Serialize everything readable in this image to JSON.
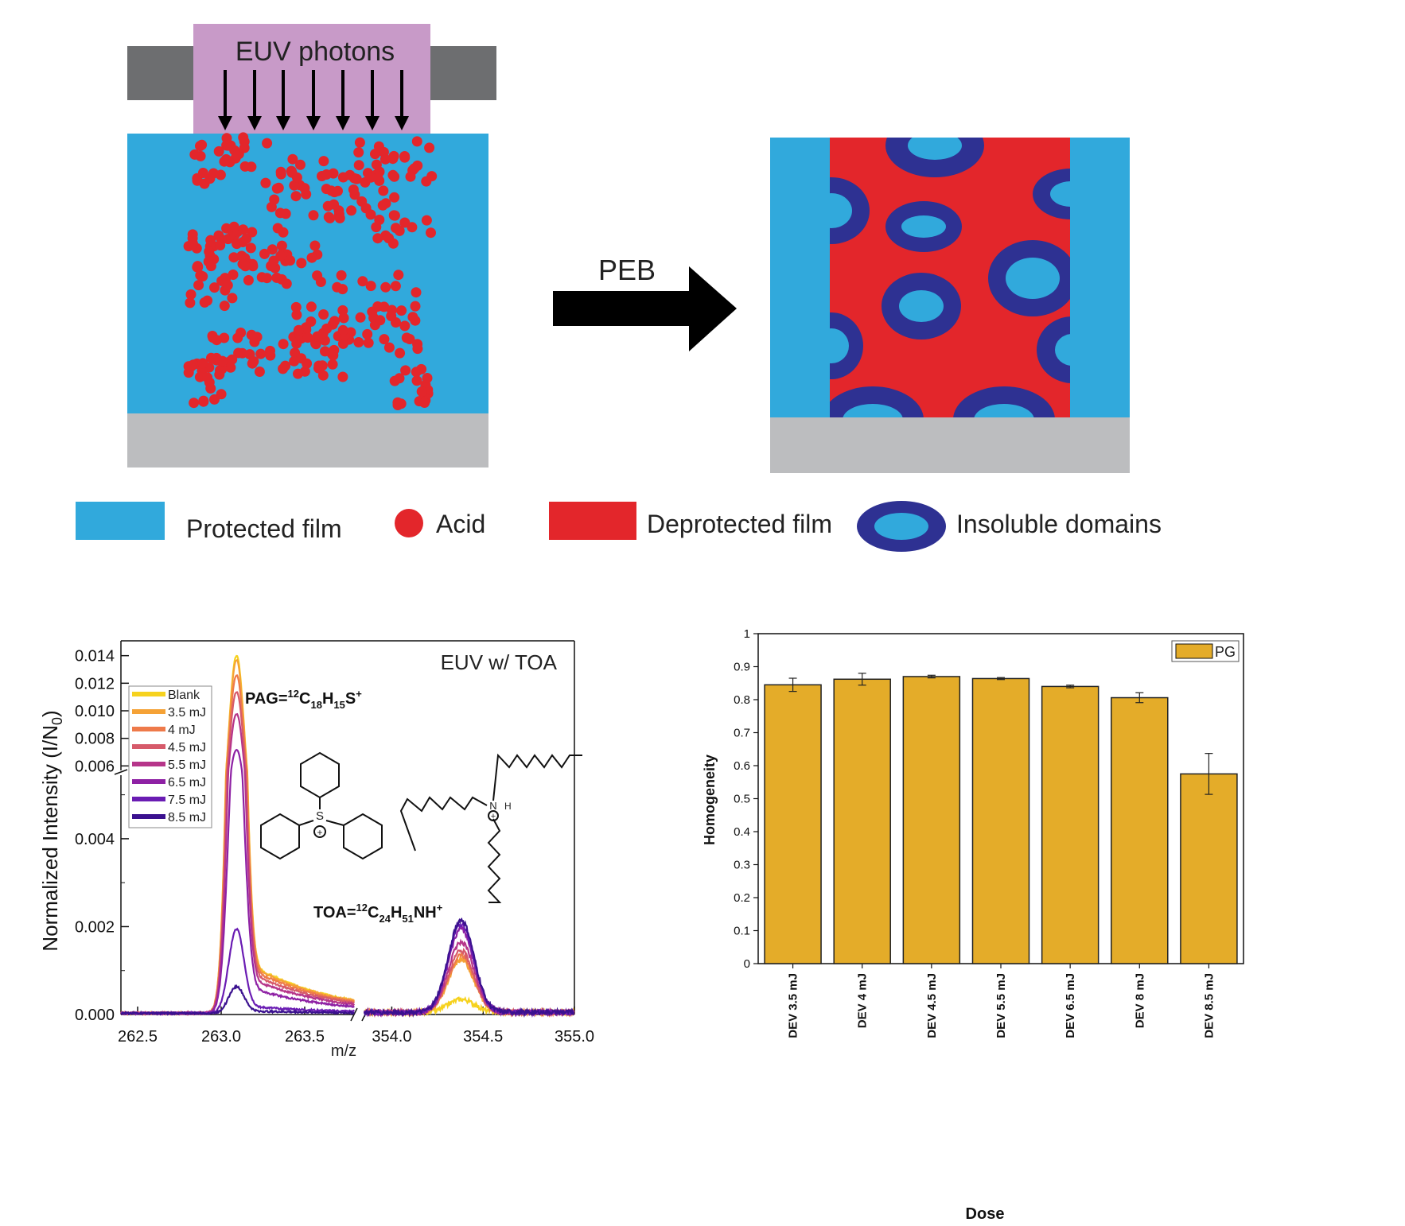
{
  "schematic": {
    "euv_label": "EUV photons",
    "arrow_label": "PEB",
    "legend": {
      "protected": "Protected film",
      "acid": "Acid",
      "deprotected": "Deprotected film",
      "insoluble": "Insoluble domains"
    },
    "colors": {
      "protected": "#31a9dc",
      "acid": "#e3262b",
      "deprotected": "#e3262b",
      "domain_ring": "#2e3192",
      "mask": "#c89ac8",
      "absorber": "#6d6e70",
      "substrate": "#bcbdbf"
    }
  },
  "chart_data": [
    {
      "type": "line",
      "annotation": "EUV w/ TOA",
      "xlabel": "m/z",
      "ylabel": "Normalized Intensity (I/N0)",
      "x_ticks_left": [
        "262.5",
        "263.0",
        "263.5"
      ],
      "x_ticks_right": [
        "354.0",
        "354.5",
        "355.0"
      ],
      "x_range_left": [
        262.4,
        263.8
      ],
      "x_range_right": [
        353.85,
        355.0
      ],
      "y_ticks_lower": [
        "0.000",
        "0.002",
        "0.004"
      ],
      "y_ticks_upper": [
        "0.006",
        "0.008",
        "0.010",
        "0.012",
        "0.014"
      ],
      "y_range_lower": [
        0,
        0.0055
      ],
      "y_range_upper": [
        0.0055,
        0.0145
      ],
      "peak_labels": {
        "pag": "PAG=12C18H15S+",
        "toa": "TOA=12C24H51NH+"
      },
      "molecule_labels": {
        "s": "S",
        "n": "N",
        "h": "H",
        "plus": "+"
      },
      "series": [
        {
          "name": "Blank",
          "color": "#f6d21e",
          "pag_peak": 0.0139,
          "toa_peak": 0.0003
        },
        {
          "name": "3.5 mJ",
          "color": "#f5a236",
          "pag_peak": 0.0136,
          "toa_peak": 0.0012
        },
        {
          "name": "4 mJ",
          "color": "#ee7a4a",
          "pag_peak": 0.0125,
          "toa_peak": 0.0013
        },
        {
          "name": "4.5 mJ",
          "color": "#d65a6a",
          "pag_peak": 0.0113,
          "toa_peak": 0.0014
        },
        {
          "name": "5.5 mJ",
          "color": "#b6358a",
          "pag_peak": 0.0097,
          "toa_peak": 0.0016
        },
        {
          "name": "6.5 mJ",
          "color": "#8e21a4",
          "pag_peak": 0.0071,
          "toa_peak": 0.0019
        },
        {
          "name": "7.5 mJ",
          "color": "#6a1cb3",
          "pag_peak": 0.0019,
          "toa_peak": 0.002
        },
        {
          "name": "8.5 mJ",
          "color": "#3b118f",
          "pag_peak": 0.0006,
          "toa_peak": 0.0021
        }
      ]
    },
    {
      "type": "bar",
      "xlabel": "Dose",
      "ylabel": "Homogeneity",
      "ylim": [
        0,
        1
      ],
      "y_ticks": [
        "0",
        "0.1",
        "0.2",
        "0.3",
        "0.4",
        "0.5",
        "0.6",
        "0.7",
        "0.8",
        "0.9",
        "1"
      ],
      "legend": "PG",
      "color": "#e4ac29",
      "categories": [
        "DEV 3.5 mJ",
        "DEV 4 mJ",
        "DEV 4.5 mJ",
        "DEV 5.5 mJ",
        "DEV 6.5 mJ",
        "DEV 8 mJ",
        "DEV 8.5 mJ"
      ],
      "values": [
        0.845,
        0.862,
        0.87,
        0.864,
        0.84,
        0.806,
        0.575
      ],
      "errors": [
        0.02,
        0.018,
        0.004,
        0.003,
        0.004,
        0.015,
        0.062
      ]
    }
  ]
}
